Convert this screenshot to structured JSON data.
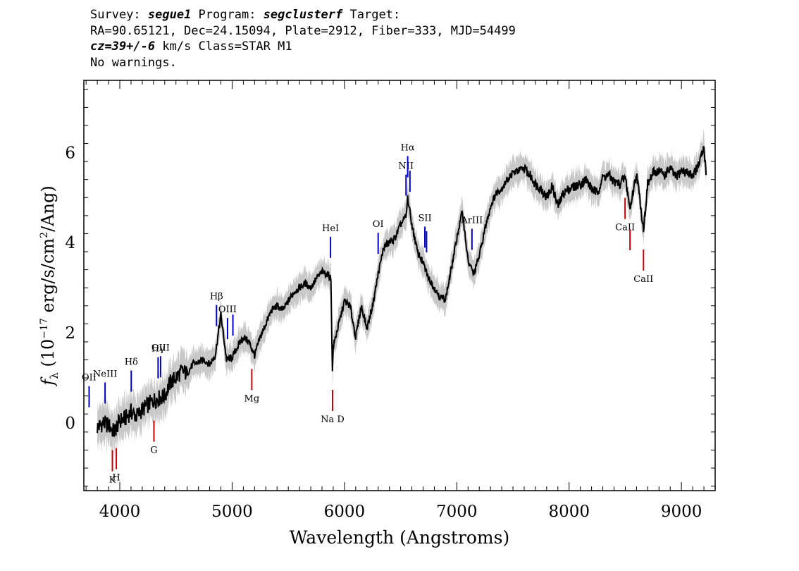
{
  "header": {
    "line1": {
      "survey_label": "Survey: ",
      "survey": "segue1",
      "program_label": " Program: ",
      "program": "segclusterf",
      "target_label": " Target:"
    },
    "line2": "RA=90.65121, Dec=24.15094, Plate=2912, Fiber=333, MJD=54499",
    "line3": {
      "cz": "cz=39+/-6",
      "rest": " km/s Class=STAR M1"
    },
    "line4": "No warnings."
  },
  "chart_data": {
    "type": "line",
    "xlabel": "Wavelength (Angstroms)",
    "ylabel": "f_λ (10^-17 erg/s/cm^2/Ang)",
    "xlim": [
      3680,
      9300
    ],
    "ylim": [
      -1.5,
      7.6
    ],
    "xticks": [
      4000,
      5000,
      6000,
      7000,
      8000,
      9000
    ],
    "yticks": [
      0,
      2,
      4,
      6
    ],
    "series": [
      {
        "role": "flux",
        "color": "#000000",
        "x": [
          3800,
          3850,
          3900,
          3950,
          4000,
          4050,
          4100,
          4150,
          4200,
          4250,
          4300,
          4350,
          4400,
          4450,
          4500,
          4550,
          4600,
          4650,
          4700,
          4750,
          4800,
          4850,
          4900,
          4950,
          5000,
          5050,
          5100,
          5150,
          5200,
          5250,
          5300,
          5350,
          5400,
          5450,
          5500,
          5550,
          5600,
          5650,
          5700,
          5750,
          5800,
          5850,
          5880,
          5893,
          5900,
          5950,
          6000,
          6050,
          6100,
          6150,
          6200,
          6250,
          6300,
          6350,
          6400,
          6450,
          6500,
          6550,
          6563,
          6600,
          6650,
          6700,
          6750,
          6800,
          6850,
          6900,
          6950,
          7000,
          7050,
          7100,
          7150,
          7200,
          7250,
          7300,
          7350,
          7400,
          7450,
          7500,
          7550,
          7600,
          7650,
          7700,
          7750,
          7800,
          7850,
          7900,
          7950,
          8000,
          8050,
          8100,
          8150,
          8200,
          8250,
          8300,
          8350,
          8400,
          8450,
          8500,
          8542,
          8600,
          8662,
          8700,
          8750,
          8800,
          8850,
          8900,
          8950,
          9000,
          9050,
          9100,
          9150,
          9200,
          9220
        ],
        "y": [
          -0.1,
          0.0,
          -0.05,
          -0.2,
          0.05,
          0.1,
          0.25,
          0.15,
          0.3,
          0.4,
          0.5,
          0.55,
          0.6,
          0.9,
          1.0,
          1.15,
          1.1,
          1.3,
          1.35,
          1.4,
          1.3,
          1.5,
          2.4,
          1.4,
          1.45,
          1.7,
          1.9,
          1.8,
          1.5,
          1.9,
          2.2,
          2.5,
          2.6,
          2.5,
          2.7,
          2.9,
          3.0,
          3.1,
          3.0,
          3.2,
          3.35,
          3.3,
          3.2,
          1.1,
          1.7,
          2.2,
          2.7,
          2.6,
          1.9,
          2.6,
          2.1,
          2.6,
          3.3,
          3.9,
          4.0,
          4.1,
          4.4,
          4.6,
          5.0,
          4.4,
          3.8,
          3.55,
          3.2,
          3.0,
          2.8,
          2.75,
          3.4,
          4.1,
          4.7,
          3.6,
          3.3,
          3.7,
          4.3,
          4.8,
          5.1,
          5.2,
          5.4,
          5.55,
          5.6,
          5.65,
          5.5,
          5.3,
          5.2,
          5.0,
          5.25,
          4.8,
          5.1,
          5.2,
          5.25,
          5.3,
          5.4,
          5.2,
          5.1,
          5.45,
          5.5,
          5.35,
          5.3,
          5.45,
          4.75,
          5.55,
          4.3,
          5.3,
          5.55,
          5.6,
          5.5,
          5.65,
          5.45,
          5.6,
          5.55,
          5.5,
          5.7,
          6.1,
          5.5
        ]
      }
    ],
    "line_ids": [
      {
        "label": "OII",
        "wave": 3727,
        "color": "#0000cc",
        "kind": "emission"
      },
      {
        "label": "NeIII",
        "wave": 3869,
        "color": "#0000cc",
        "kind": "emission"
      },
      {
        "label": "Hδ",
        "wave": 4102,
        "color": "#0000cc",
        "kind": "emission"
      },
      {
        "label": "Hγ",
        "wave": 4341,
        "color": "#0000cc",
        "kind": "emission"
      },
      {
        "label": "OIII",
        "wave": 4363,
        "color": "#0000cc",
        "kind": "emission"
      },
      {
        "label": "Hβ",
        "wave": 4861,
        "color": "#0000cc",
        "kind": "emission"
      },
      {
        "label": "OIII",
        "wave": 4959,
        "color": "#0000cc",
        "kind": "emission"
      },
      {
        "label": "OIII",
        "wave": 5007,
        "color": "#0000cc",
        "kind": "emission"
      },
      {
        "label": "HeI",
        "wave": 5876,
        "color": "#0000cc",
        "kind": "emission"
      },
      {
        "label": "OI",
        "wave": 6300,
        "color": "#0000cc",
        "kind": "emission"
      },
      {
        "label": "NII",
        "wave": 6548,
        "color": "#0000cc",
        "kind": "emission"
      },
      {
        "label": "Hα",
        "wave": 6563,
        "color": "#0000cc",
        "kind": "emission"
      },
      {
        "label": "NII",
        "wave": 6583,
        "color": "#0000cc",
        "kind": "emission"
      },
      {
        "label": "SII",
        "wave": 6716,
        "color": "#0000cc",
        "kind": "emission"
      },
      {
        "label": "SII",
        "wave": 6731,
        "color": "#0000cc",
        "kind": "emission"
      },
      {
        "label": "ArIII",
        "wave": 7135,
        "color": "#0000cc",
        "kind": "emission"
      },
      {
        "label": "K",
        "wave": 3934,
        "color": "#cc0000",
        "kind": "absorption"
      },
      {
        "label": "H",
        "wave": 3969,
        "color": "#cc0000",
        "kind": "absorption"
      },
      {
        "label": "G",
        "wave": 4304,
        "color": "#cc0000",
        "kind": "absorption"
      },
      {
        "label": "Mg",
        "wave": 5175,
        "color": "#cc0000",
        "kind": "absorption"
      },
      {
        "label": "Na D",
        "wave": 5894,
        "color": "#cc0000",
        "kind": "absorption"
      },
      {
        "label": "CaII",
        "wave": 8498,
        "color": "#cc0000",
        "kind": "absorption"
      },
      {
        "label": "CaII",
        "wave": 8542,
        "color": "#cc0000",
        "kind": "absorption"
      },
      {
        "label": "CaII",
        "wave": 8662,
        "color": "#cc0000",
        "kind": "absorption"
      }
    ]
  }
}
